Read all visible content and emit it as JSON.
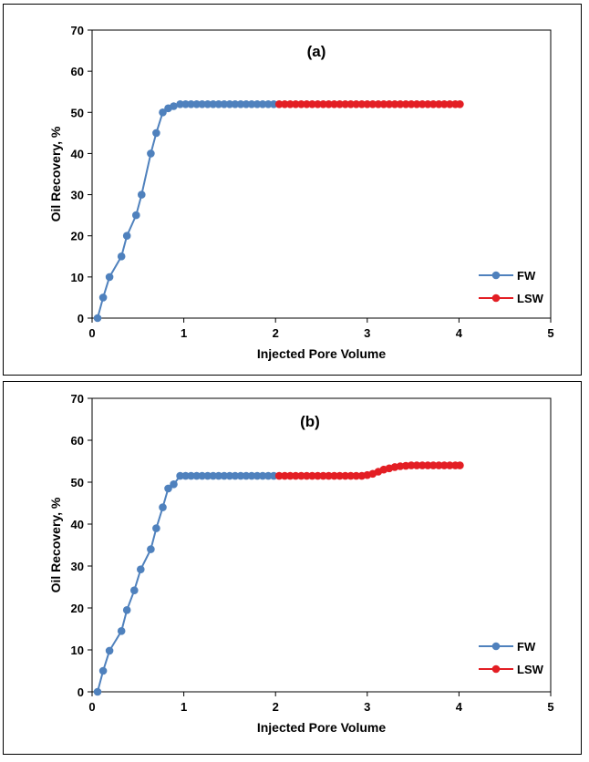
{
  "chart_data": [
    {
      "type": "line",
      "title": "(a)",
      "xlabel": "Injected Pore Volume",
      "ylabel": "Oil Recovery, %",
      "xlim": [
        0,
        5
      ],
      "ylim": [
        0,
        70
      ],
      "xticks": [
        0,
        1,
        2,
        3,
        4,
        5
      ],
      "yticks": [
        0,
        10,
        20,
        30,
        40,
        50,
        60,
        70
      ],
      "grid": false,
      "legend_position": "bottom-right",
      "series": [
        {
          "name": "FW",
          "color": "#4f81bd",
          "x": [
            0.06,
            0.12,
            0.19,
            0.32,
            0.38,
            0.48,
            0.54,
            0.64,
            0.7,
            0.77,
            0.83,
            0.89,
            0.96,
            1.02,
            1.08,
            1.14,
            1.2,
            1.26,
            1.32,
            1.38,
            1.44,
            1.5,
            1.56,
            1.62,
            1.68,
            1.74,
            1.8,
            1.86,
            1.92,
            1.98
          ],
          "y": [
            0,
            5,
            10,
            15,
            20,
            25,
            30,
            40,
            45,
            50,
            51,
            51.5,
            52,
            52,
            52,
            52,
            52,
            52,
            52,
            52,
            52,
            52,
            52,
            52,
            52,
            52,
            52,
            52,
            52,
            52
          ]
        },
        {
          "name": "LSW",
          "color": "#e31e24",
          "x": [
            2.04,
            2.1,
            2.16,
            2.22,
            2.28,
            2.34,
            2.4,
            2.46,
            2.52,
            2.58,
            2.64,
            2.7,
            2.76,
            2.82,
            2.88,
            2.94,
            3.0,
            3.06,
            3.12,
            3.18,
            3.24,
            3.3,
            3.36,
            3.42,
            3.48,
            3.54,
            3.6,
            3.66,
            3.72,
            3.78,
            3.84,
            3.9,
            3.96,
            4.01
          ],
          "y": [
            52,
            52,
            52,
            52,
            52,
            52,
            52,
            52,
            52,
            52,
            52,
            52,
            52,
            52,
            52,
            52,
            52,
            52,
            52,
            52,
            52,
            52,
            52,
            52,
            52,
            52,
            52,
            52,
            52,
            52,
            52,
            52,
            52,
            52
          ]
        }
      ]
    },
    {
      "type": "line",
      "title": "(b)",
      "xlabel": "Injected Pore Volume",
      "ylabel": "Oil Recovery, %",
      "xlim": [
        0,
        5
      ],
      "ylim": [
        0,
        70
      ],
      "xticks": [
        0,
        1,
        2,
        3,
        4,
        5
      ],
      "yticks": [
        0,
        10,
        20,
        30,
        40,
        50,
        60,
        70
      ],
      "grid": false,
      "legend_position": "bottom-right",
      "series": [
        {
          "name": "FW",
          "color": "#4f81bd",
          "x": [
            0.06,
            0.12,
            0.19,
            0.32,
            0.38,
            0.46,
            0.53,
            0.64,
            0.7,
            0.77,
            0.83,
            0.89,
            0.96,
            1.02,
            1.08,
            1.14,
            1.2,
            1.26,
            1.32,
            1.38,
            1.44,
            1.5,
            1.56,
            1.62,
            1.68,
            1.74,
            1.8,
            1.86,
            1.92,
            1.98
          ],
          "y": [
            0,
            5,
            9.8,
            14.5,
            19.5,
            24.2,
            29.2,
            34,
            39,
            44,
            48.5,
            49.5,
            51.5,
            51.5,
            51.5,
            51.5,
            51.5,
            51.5,
            51.5,
            51.5,
            51.5,
            51.5,
            51.5,
            51.5,
            51.5,
            51.5,
            51.5,
            51.5,
            51.5,
            51.5
          ]
        },
        {
          "name": "LSW",
          "color": "#e31e24",
          "x": [
            2.04,
            2.1,
            2.16,
            2.22,
            2.28,
            2.34,
            2.4,
            2.46,
            2.52,
            2.58,
            2.64,
            2.7,
            2.76,
            2.82,
            2.88,
            2.94,
            3.0,
            3.06,
            3.12,
            3.18,
            3.24,
            3.3,
            3.36,
            3.42,
            3.48,
            3.54,
            3.6,
            3.66,
            3.72,
            3.78,
            3.84,
            3.9,
            3.96,
            4.01
          ],
          "y": [
            51.5,
            51.5,
            51.5,
            51.5,
            51.5,
            51.5,
            51.5,
            51.5,
            51.5,
            51.5,
            51.5,
            51.5,
            51.5,
            51.5,
            51.5,
            51.5,
            51.7,
            52.0,
            52.5,
            53.0,
            53.3,
            53.6,
            53.8,
            53.9,
            54.0,
            54.0,
            54.0,
            54.0,
            54.0,
            54.0,
            54.0,
            54.0,
            54.0,
            54.0
          ]
        }
      ]
    }
  ]
}
